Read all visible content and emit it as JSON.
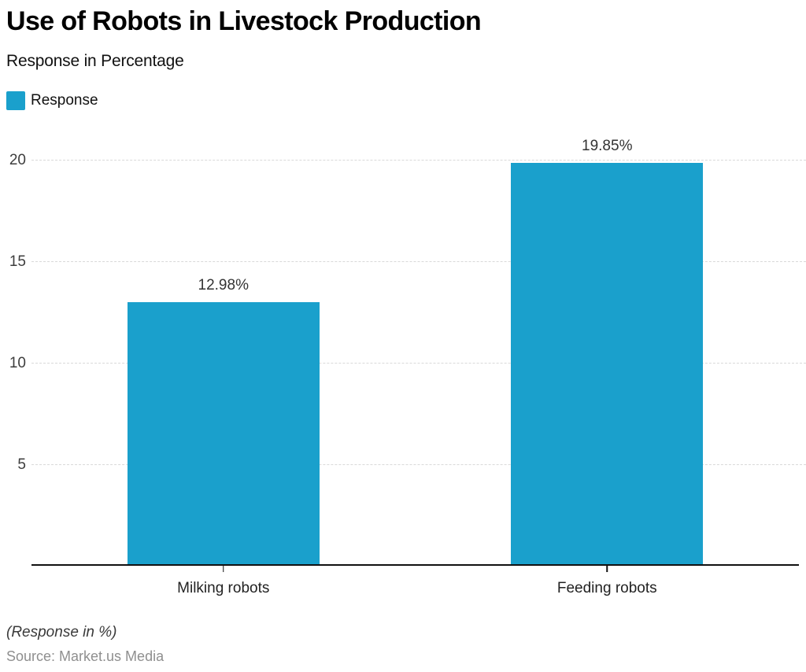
{
  "header": {
    "title": "Use of Robots in Livestock Production",
    "subtitle": "Response in Percentage"
  },
  "legend": {
    "label": "Response",
    "color": "#1AA0CC"
  },
  "chart_data": {
    "type": "bar",
    "categories": [
      "Milking robots",
      "Feeding robots"
    ],
    "values": [
      12.98,
      19.85
    ],
    "value_labels": [
      "12.98%",
      "19.85%"
    ],
    "series": [
      {
        "name": "Response",
        "values": [
          12.98,
          19.85
        ]
      }
    ],
    "title": "Use of Robots in Livestock Production",
    "subtitle": "Response in Percentage",
    "xlabel": "",
    "ylabel": "",
    "ylim": [
      0,
      20
    ],
    "yticks": [
      5,
      10,
      15,
      20
    ],
    "grid": true,
    "grid_style": "dashed",
    "legend_position": "top-left",
    "bar_color": "#1AA0CC"
  },
  "footer": {
    "note": "(Response in %)",
    "source": "Source: Market.us Media"
  },
  "colors": {
    "bar": "#1AA0CC",
    "axis": "#111111",
    "gridline": "#D9D9D9",
    "tick_label": "#3D3D3D",
    "category_label": "#222222",
    "value_label": "#333333",
    "note": "#3A3A3A",
    "source": "#8F8F8F"
  }
}
